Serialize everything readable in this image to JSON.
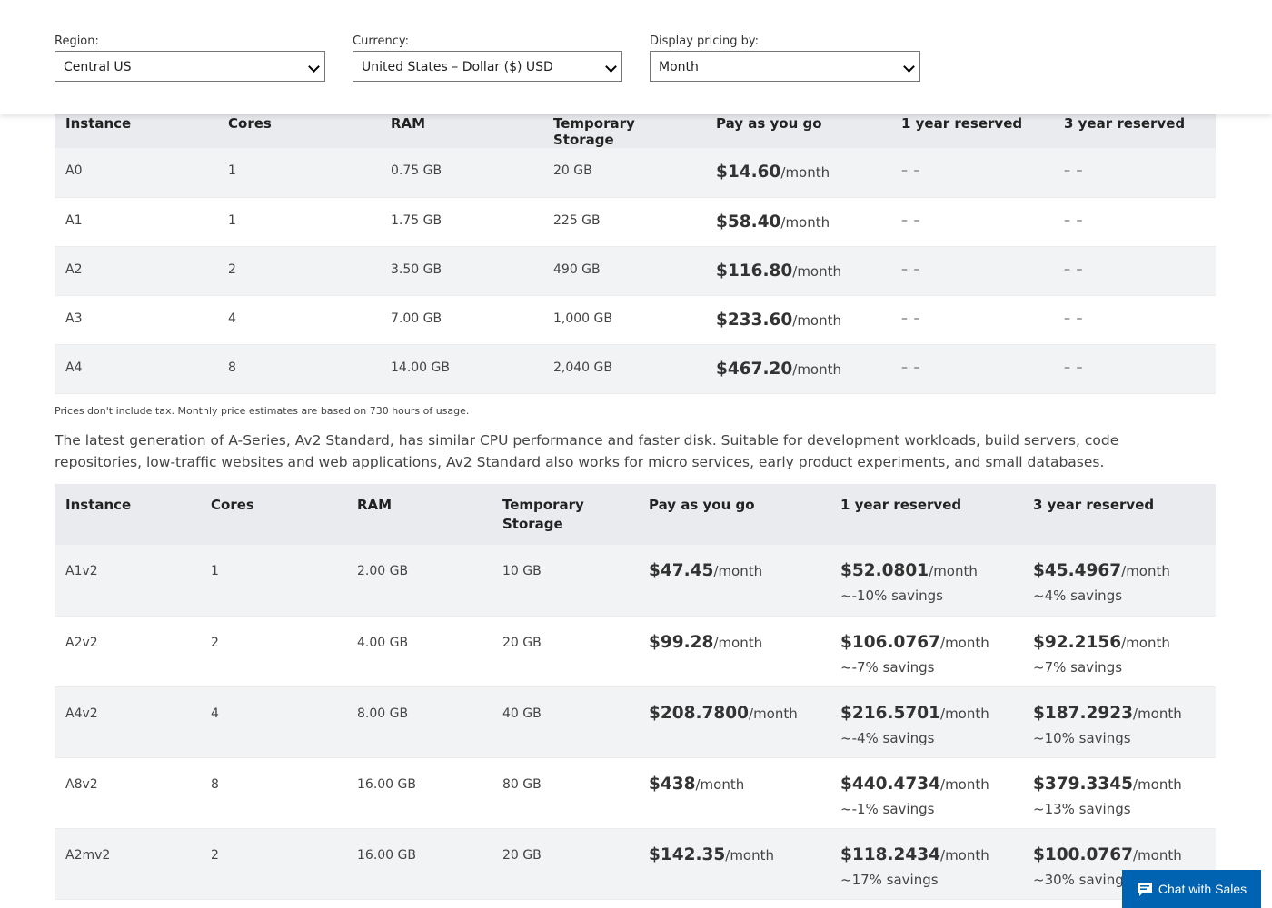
{
  "filters": {
    "region": {
      "label": "Region:",
      "value": "Central US"
    },
    "currency": {
      "label": "Currency:",
      "value": "United States – Dollar ($) USD"
    },
    "display": {
      "label": "Display pricing by:",
      "value": "Month"
    }
  },
  "table1": {
    "headers": [
      "Instance",
      "Cores",
      "RAM",
      "Temporary Storage",
      "Pay as you go",
      "1 year reserved",
      "3 year reserved"
    ],
    "rows": [
      {
        "instance": "A0",
        "cores": "1",
        "ram": "0.75 GB",
        "storage": "20 GB",
        "payg": "$14.60",
        "unit": "/month",
        "y1": "– –",
        "y3": "– –"
      },
      {
        "instance": "A1",
        "cores": "1",
        "ram": "1.75 GB",
        "storage": "225 GB",
        "payg": "$58.40",
        "unit": "/month",
        "y1": "– –",
        "y3": "– –"
      },
      {
        "instance": "A2",
        "cores": "2",
        "ram": "3.50 GB",
        "storage": "490 GB",
        "payg": "$116.80",
        "unit": "/month",
        "y1": "– –",
        "y3": "– –"
      },
      {
        "instance": "A3",
        "cores": "4",
        "ram": "7.00 GB",
        "storage": "1,000 GB",
        "payg": "$233.60",
        "unit": "/month",
        "y1": "– –",
        "y3": "– –"
      },
      {
        "instance": "A4",
        "cores": "8",
        "ram": "14.00 GB",
        "storage": "2,040 GB",
        "payg": "$467.20",
        "unit": "/month",
        "y1": "– –",
        "y3": "– –"
      }
    ]
  },
  "note": "Prices don't include tax. Monthly price estimates are based on 730 hours of usage.",
  "description": "The latest generation of A-Series, Av2 Standard, has similar CPU performance and faster disk. Suitable for development workloads, build servers, code repositories, low-traffic websites and web applications, Av2 Standard also works for micro services, early product experiments, and small databases.",
  "table2": {
    "headers": [
      "Instance",
      "Cores",
      "RAM",
      "Temporary Storage",
      "Pay as you go",
      "1 year reserved",
      "3 year reserved"
    ],
    "rows": [
      {
        "instance": "A1v2",
        "cores": "1",
        "ram": "2.00 GB",
        "storage": "10 GB",
        "payg": "$47.45",
        "payg_unit": "/month",
        "y1": "$52.0801",
        "y1_suffix": "/month ~-10% savings",
        "y3": "$45.4967",
        "y3_suffix": "/month ~4% savings"
      },
      {
        "instance": "A2v2",
        "cores": "2",
        "ram": "4.00 GB",
        "storage": "20 GB",
        "payg": "$99.28",
        "payg_unit": "/month",
        "y1": "$106.0767",
        "y1_suffix": "/month ~-7% savings",
        "y3": "$92.2156",
        "y3_suffix": "/month ~7% savings"
      },
      {
        "instance": "A4v2",
        "cores": "4",
        "ram": "8.00 GB",
        "storage": "40 GB",
        "payg": "$208.7800",
        "payg_unit": "/month",
        "y1": "$216.5701",
        "y1_suffix": "/month ~-4% savings",
        "y3": "$187.2923",
        "y3_suffix": "/month ~10% savings"
      },
      {
        "instance": "A8v2",
        "cores": "8",
        "ram": "16.00 GB",
        "storage": "80 GB",
        "payg": "$438",
        "payg_unit": "/month",
        "y1": "$440.4734",
        "y1_suffix": "/month ~-1% savings",
        "y3": "$379.3345",
        "y3_suffix": "/month ~13% savings"
      },
      {
        "instance": "A2mv2",
        "cores": "2",
        "ram": "16.00 GB",
        "storage": "20 GB",
        "payg": "$142.35",
        "payg_unit": "/month",
        "y1": "$118.2434",
        "y1_suffix": "/month ~17% savings",
        "y3": "$100.0767",
        "y3_suffix": "/month ~30% savings"
      }
    ]
  },
  "chat": {
    "label": "Chat with Sales",
    "icon": "chat-icon"
  },
  "colors": {
    "header_bg": "#e9ebee",
    "row_alt": "#f2f3f5",
    "chat_bg": "#0063b1"
  }
}
